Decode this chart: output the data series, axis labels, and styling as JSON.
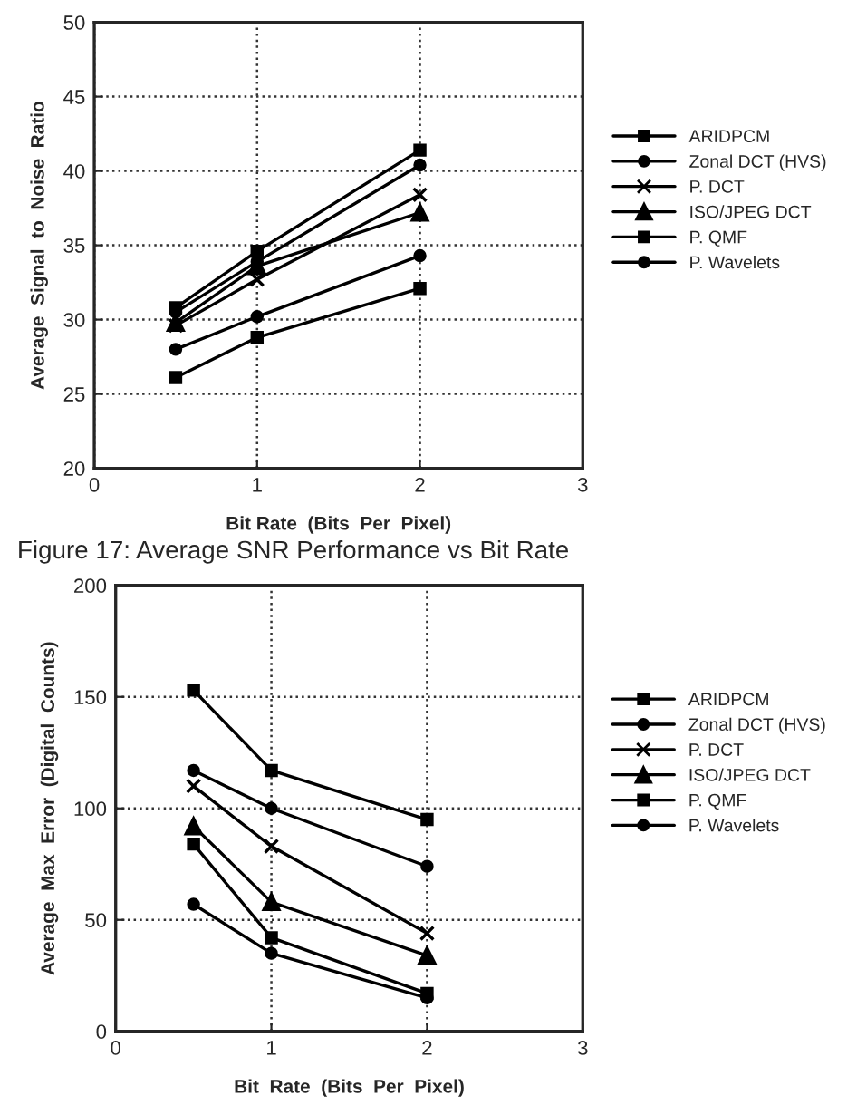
{
  "chart_data": [
    {
      "type": "line",
      "xlabel": "Bit Rate  (Bits  Per  Pixel)",
      "ylabel": "Average  Signal  to  Noise  Ratio",
      "x": [
        0.5,
        1,
        2
      ],
      "xlim": [
        0,
        3
      ],
      "xticks": [
        0,
        1,
        2,
        3
      ],
      "ylim": [
        20,
        50
      ],
      "yticks": [
        20,
        25,
        30,
        35,
        40,
        45,
        50
      ],
      "grid": true,
      "legend": "right",
      "annotations": [
        "Figure 17: Average SNR Performance vs Bit Rate"
      ],
      "series": [
        {
          "name": "ARIDPCM",
          "color": "#000000",
          "marker": "square",
          "values": [
            26.1,
            28.8,
            32.1
          ]
        },
        {
          "name": "Zonal DCT (HVS)",
          "color": "#000000",
          "marker": "circle",
          "values": [
            28.0,
            30.2,
            34.3
          ]
        },
        {
          "name": "P. DCT",
          "color": "#000000",
          "marker": "cross",
          "values": [
            29.6,
            32.7,
            38.4
          ]
        },
        {
          "name": "ISO/JPEG DCT",
          "color": "#000000",
          "marker": "triangle",
          "values": [
            29.8,
            33.6,
            37.2
          ]
        },
        {
          "name": "P. QMF",
          "color": "#000000",
          "marker": "square",
          "values": [
            30.8,
            34.6,
            41.4
          ]
        },
        {
          "name": "P. Wavelets",
          "color": "#000000",
          "marker": "circle",
          "values": [
            30.5,
            33.9,
            40.4
          ]
        }
      ]
    },
    {
      "type": "line",
      "xlabel": "Bit  Rate  (Bits  Per  Pixel)",
      "ylabel": "Average  Max  Error  (Digital  Counts)",
      "x": [
        0.5,
        1,
        2
      ],
      "xlim": [
        0,
        3
      ],
      "xticks": [
        0,
        1,
        2,
        3
      ],
      "ylim": [
        0,
        200
      ],
      "yticks": [
        0,
        50,
        100,
        150,
        200
      ],
      "grid": true,
      "legend": "right",
      "series": [
        {
          "name": "ARIDPCM",
          "color": "#000000",
          "marker": "square",
          "values": [
            153,
            117,
            95
          ]
        },
        {
          "name": "Zonal DCT (HVS)",
          "color": "#000000",
          "marker": "circle",
          "values": [
            117,
            100,
            74
          ]
        },
        {
          "name": "P. DCT",
          "color": "#000000",
          "marker": "cross",
          "values": [
            110,
            83,
            44
          ]
        },
        {
          "name": "ISO/JPEG DCT",
          "color": "#000000",
          "marker": "triangle",
          "values": [
            92,
            58,
            34
          ]
        },
        {
          "name": "P. QMF",
          "color": "#000000",
          "marker": "square",
          "values": [
            84,
            42,
            17
          ]
        },
        {
          "name": "P. Wavelets",
          "color": "#000000",
          "marker": "circle",
          "values": [
            57,
            35,
            15
          ]
        }
      ]
    }
  ]
}
